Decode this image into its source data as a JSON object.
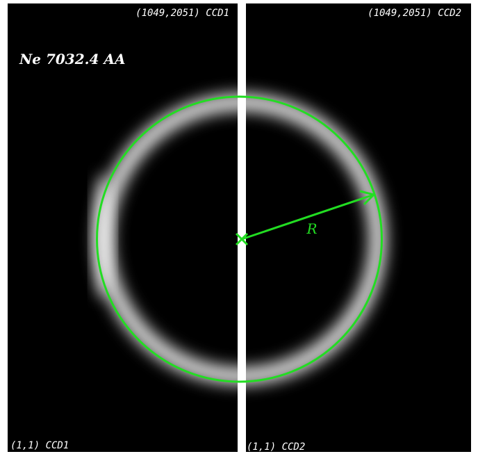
{
  "ccd1": {
    "top_label": "(1049,2051) CCD1",
    "bottom_label": "(1,1) CCD1"
  },
  "ccd2": {
    "top_label": "(1049,2051) CCD2",
    "bottom_label": "(1,1) CCD2"
  },
  "line_label": "Ne 7032.4 AA",
  "radius_label": "R"
}
